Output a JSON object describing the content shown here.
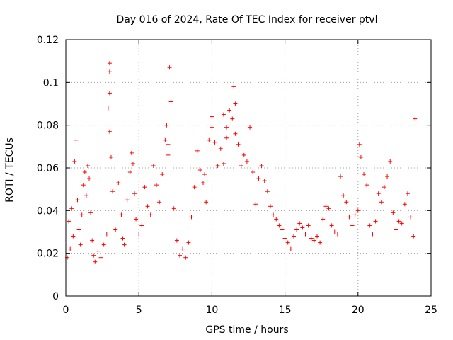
{
  "chart_data": {
    "type": "scatter",
    "title": "Day 016 of 2024, Rate Of TEC Index for receiver ptvl",
    "xlabel": "GPS time / hours",
    "ylabel": "ROTI / TECUs",
    "xlim": [
      0,
      25
    ],
    "ylim": [
      0,
      0.12
    ],
    "xticks": [
      0,
      5,
      10,
      15,
      20,
      25
    ],
    "xtick_labels": [
      "0",
      "5",
      "10",
      "15",
      "20",
      "25"
    ],
    "yticks": [
      0,
      0.02,
      0.04,
      0.06,
      0.08,
      0.1,
      0.12
    ],
    "ytick_labels": [
      "0",
      "0.02",
      "0.04",
      "0.06",
      "0.08",
      "0.1",
      "0.12"
    ],
    "grid": true,
    "marker": "+",
    "color": "#ff0000",
    "series": [
      {
        "name": "ROTI",
        "x": [
          0.1,
          0.2,
          0.3,
          0.4,
          0.5,
          0.6,
          0.7,
          0.8,
          0.9,
          1.0,
          1.1,
          1.2,
          1.3,
          1.4,
          1.5,
          1.6,
          1.7,
          1.8,
          1.9,
          2.0,
          2.2,
          2.4,
          2.6,
          2.8,
          2.9,
          3.0,
          3.0,
          3.0,
          3.0,
          3.1,
          3.2,
          3.4,
          3.6,
          3.8,
          3.9,
          4.0,
          4.2,
          4.4,
          4.5,
          4.6,
          4.7,
          4.8,
          5.0,
          5.2,
          5.4,
          5.6,
          5.8,
          6.0,
          6.2,
          6.4,
          6.6,
          6.8,
          6.9,
          7.0,
          7.0,
          7.1,
          7.2,
          7.4,
          7.6,
          7.8,
          8.0,
          8.2,
          8.4,
          8.6,
          8.8,
          9.0,
          9.2,
          9.4,
          9.5,
          9.6,
          9.8,
          10.0,
          10.0,
          10.2,
          10.4,
          10.6,
          10.8,
          10.8,
          11.0,
          11.0,
          11.2,
          11.4,
          11.5,
          11.6,
          11.6,
          11.8,
          12.0,
          12.2,
          12.4,
          12.6,
          12.8,
          13.0,
          13.2,
          13.4,
          13.6,
          13.8,
          14.0,
          14.2,
          14.4,
          14.6,
          14.8,
          15.0,
          15.2,
          15.4,
          15.6,
          15.8,
          16.0,
          16.2,
          16.4,
          16.6,
          16.8,
          17.0,
          17.2,
          17.4,
          17.6,
          17.8,
          18.0,
          18.2,
          18.4,
          18.6,
          18.8,
          19.0,
          19.2,
          19.4,
          19.6,
          19.8,
          20.0,
          20.1,
          20.2,
          20.4,
          20.6,
          20.8,
          21.0,
          21.2,
          21.4,
          21.6,
          21.8,
          22.0,
          22.2,
          22.4,
          22.6,
          22.8,
          23.0,
          23.2,
          23.4,
          23.6,
          23.8,
          23.9
        ],
        "y": [
          0.018,
          0.035,
          0.022,
          0.041,
          0.028,
          0.063,
          0.073,
          0.045,
          0.031,
          0.024,
          0.038,
          0.052,
          0.058,
          0.047,
          0.061,
          0.055,
          0.039,
          0.026,
          0.019,
          0.016,
          0.021,
          0.018,
          0.024,
          0.029,
          0.088,
          0.105,
          0.109,
          0.095,
          0.077,
          0.065,
          0.049,
          0.031,
          0.053,
          0.038,
          0.027,
          0.024,
          0.045,
          0.058,
          0.067,
          0.062,
          0.048,
          0.036,
          0.029,
          0.033,
          0.051,
          0.042,
          0.038,
          0.061,
          0.052,
          0.044,
          0.057,
          0.073,
          0.08,
          0.071,
          0.066,
          0.107,
          0.091,
          0.041,
          0.026,
          0.019,
          0.022,
          0.018,
          0.025,
          0.037,
          0.051,
          0.068,
          0.059,
          0.053,
          0.057,
          0.044,
          0.073,
          0.084,
          0.079,
          0.072,
          0.061,
          0.069,
          0.062,
          0.085,
          0.079,
          0.074,
          0.087,
          0.083,
          0.098,
          0.09,
          0.076,
          0.071,
          0.061,
          0.066,
          0.063,
          0.079,
          0.058,
          0.043,
          0.055,
          0.061,
          0.054,
          0.049,
          0.042,
          0.038,
          0.036,
          0.033,
          0.031,
          0.027,
          0.025,
          0.022,
          0.028,
          0.031,
          0.034,
          0.032,
          0.029,
          0.033,
          0.027,
          0.026,
          0.028,
          0.025,
          0.036,
          0.042,
          0.041,
          0.033,
          0.03,
          0.029,
          0.056,
          0.047,
          0.044,
          0.037,
          0.033,
          0.038,
          0.04,
          0.071,
          0.065,
          0.057,
          0.052,
          0.033,
          0.029,
          0.035,
          0.048,
          0.044,
          0.051,
          0.056,
          0.063,
          0.039,
          0.031,
          0.035,
          0.034,
          0.043,
          0.048,
          0.037,
          0.028,
          0.083
        ]
      }
    ]
  }
}
